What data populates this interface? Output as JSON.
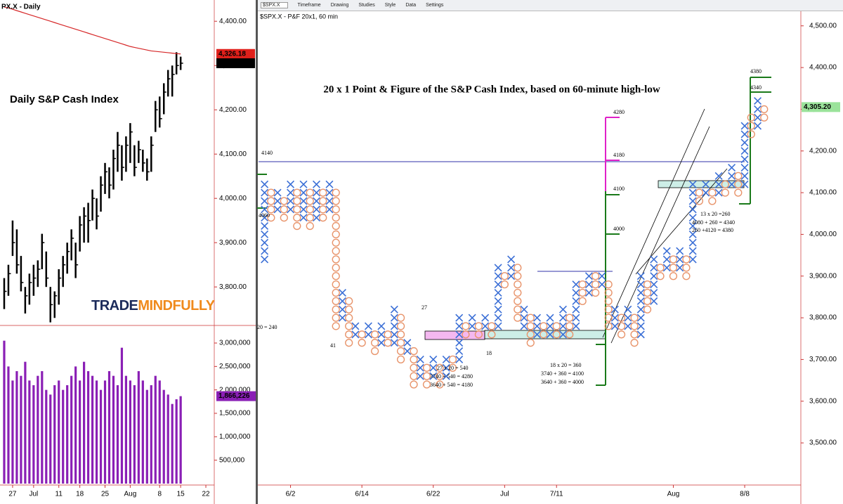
{
  "toolbar": {
    "symbol": "$SPX.X",
    "items": [
      "Timeframe",
      "Drawing",
      "Studies",
      "Style",
      "Data",
      "Settings"
    ]
  },
  "chart_data": [
    {
      "type": "ohlc",
      "title": "PX.X - Daily",
      "annotation": "Daily S&P Cash Index",
      "logo": [
        "TRADE",
        "MINDFULLY"
      ],
      "ylim": [
        3713,
        4448
      ],
      "yticks": [
        {
          "value": 3800,
          "label": "3,800.00"
        },
        {
          "value": 3900,
          "label": "3,900.00"
        },
        {
          "value": 4000,
          "label": "4,000.00"
        },
        {
          "value": 4100,
          "label": "4,100.00"
        },
        {
          "value": 4200,
          "label": "4,200.00"
        },
        {
          "value": 4300,
          "label": "4,300.00"
        },
        {
          "value": 4400,
          "label": "4,400.00"
        }
      ],
      "xlim": [
        -1,
        50
      ],
      "xticks": [
        {
          "value": 2,
          "label": "27"
        },
        {
          "value": 7,
          "label": "Jul"
        },
        {
          "value": 13,
          "label": "11"
        },
        {
          "value": 18,
          "label": "18"
        },
        {
          "value": 24,
          "label": "25"
        },
        {
          "value": 30,
          "label": "Aug"
        },
        {
          "value": 37,
          "label": "8"
        },
        {
          "value": 42,
          "label": "15"
        },
        {
          "value": 48,
          "label": "22"
        }
      ],
      "highs": [
        3820,
        3850,
        3950,
        3930,
        3870,
        3800,
        3830,
        3850,
        3860,
        3920,
        3880,
        3800,
        3790,
        3840,
        3870,
        3900,
        3930,
        3900,
        3960,
        3980,
        3990,
        4020,
        4000,
        4050,
        4080,
        4070,
        4110,
        4150,
        4120,
        4140,
        4170,
        4120,
        4130,
        4110,
        4090,
        4140,
        4220,
        4230,
        4260,
        4290,
        4300,
        4330,
        4320
      ],
      "lows": [
        3750,
        3780,
        3870,
        3830,
        3790,
        3740,
        3760,
        3780,
        3800,
        3840,
        3800,
        3720,
        3730,
        3760,
        3800,
        3830,
        3860,
        3820,
        3880,
        3900,
        3900,
        3950,
        3930,
        3970,
        4010,
        4000,
        4020,
        4060,
        4040,
        4060,
        4080,
        4050,
        4080,
        4060,
        4040,
        4060,
        4150,
        4160,
        4190,
        4230,
        4230,
        4280,
        4290
      ],
      "closes": [
        3790,
        3830,
        3900,
        3850,
        3810,
        3780,
        3810,
        3820,
        3840,
        3900,
        3820,
        3760,
        3780,
        3820,
        3850,
        3880,
        3910,
        3850,
        3940,
        3960,
        3950,
        4000,
        3960,
        4030,
        4060,
        4030,
        4090,
        4120,
        4070,
        4120,
        4150,
        4070,
        4110,
        4080,
        4060,
        4120,
        4200,
        4180,
        4240,
        4270,
        4280,
        4300,
        4305.2
      ],
      "ma_values": [
        4432,
        4430,
        4427,
        4424,
        4421,
        4418,
        4415,
        4412,
        4409,
        4406,
        4403,
        4400,
        4397,
        4394,
        4391,
        4388,
        4385,
        4382,
        4379,
        4376,
        4373,
        4370,
        4367,
        4364,
        4361,
        4358,
        4355,
        4352,
        4349,
        4346,
        4343,
        4341,
        4339,
        4337,
        4335,
        4333,
        4332,
        4331,
        4330,
        4329,
        4328,
        4327,
        4326.18
      ],
      "bar_color": "#000",
      "ma_color": "#d62728",
      "price_labels": [
        {
          "value": 4326.18,
          "label": "4,326.18",
          "color": "#e0201b"
        },
        {
          "value": 4305.2,
          "label": "4,305.20",
          "color": "#000000"
        }
      ]
    },
    {
      "type": "bar",
      "xlim": [
        -1,
        50
      ],
      "ylim": [
        0,
        3270000
      ],
      "color": "#8a1fb5",
      "yticks": [
        {
          "value": 500000,
          "label": "500,000"
        },
        {
          "value": 1000000,
          "label": "1,000,000"
        },
        {
          "value": 1500000,
          "label": "1,500,000"
        },
        {
          "value": 2000000,
          "label": "2,000,000"
        },
        {
          "value": 2500000,
          "label": "2,500,000"
        },
        {
          "value": 3000000,
          "label": "3,000,000"
        }
      ],
      "values": [
        3050000,
        2500000,
        2200000,
        2400000,
        2300000,
        2600000,
        2200000,
        2100000,
        2300000,
        2400000,
        2000000,
        1900000,
        2100000,
        2200000,
        2000000,
        2100000,
        2300000,
        2500000,
        2200000,
        2600000,
        2400000,
        2300000,
        2200000,
        2000000,
        2200000,
        2400000,
        2300000,
        2100000,
        2900000,
        2300000,
        2200000,
        2100000,
        2400000,
        2200000,
        2000000,
        2100000,
        2300000,
        2200000,
        2000000,
        1900000,
        1700000,
        1800000,
        1866226
      ],
      "last_label": {
        "value": 1866226,
        "label": "1,866,226"
      }
    },
    {
      "type": "point-and-figure",
      "title": "$SPX.X - P&F 20x1, 60 min",
      "box_size": 20,
      "x_color": "#3b6fd6",
      "o_color": "#e8946b",
      "ylim": [
        3399,
        4535
      ],
      "xlim": [
        -0.5,
        78
      ],
      "yticks": [
        {
          "value": 3500,
          "label": "3,500.00"
        },
        {
          "value": 3600,
          "label": "3,600.00"
        },
        {
          "value": 3700,
          "label": "3,700.00"
        },
        {
          "value": 3800,
          "label": "3,800.00"
        },
        {
          "value": 3900,
          "label": "3,900.00"
        },
        {
          "value": 4000,
          "label": "4,000.00"
        },
        {
          "value": 4100,
          "label": "4,100.00"
        },
        {
          "value": 4200,
          "label": "4,200.00"
        },
        {
          "value": 4300,
          "label": "4,300.00"
        },
        {
          "value": 4400,
          "label": "4,400.00"
        },
        {
          "value": 4500,
          "label": "4,500.00"
        }
      ],
      "xticks": [
        {
          "value": 4,
          "label": "6/2"
        },
        {
          "value": 15,
          "label": "6/14"
        },
        {
          "value": 26,
          "label": "6/22"
        },
        {
          "value": 37,
          "label": "Jul"
        },
        {
          "value": 45,
          "label": "7/11"
        },
        {
          "value": 63,
          "label": "Aug"
        },
        {
          "value": 74,
          "label": "8/8"
        }
      ],
      "columns": [
        [
          "X",
          3940,
          4120
        ],
        [
          "O",
          4040,
          4100
        ],
        [
          "X",
          4060,
          4100
        ],
        [
          "O",
          4040,
          4080
        ],
        [
          "X",
          4060,
          4120
        ],
        [
          "O",
          4020,
          4100
        ],
        [
          "X",
          4040,
          4120
        ],
        [
          "O",
          4020,
          4100
        ],
        [
          "X",
          4040,
          4120
        ],
        [
          "O",
          4040,
          4100
        ],
        [
          "X",
          4060,
          4120
        ],
        [
          "O",
          3780,
          4100
        ],
        [
          "X",
          3800,
          3860
        ],
        [
          "O",
          3740,
          3840
        ],
        [
          "X",
          3760,
          3780
        ],
        [
          "O",
          3740,
          3760
        ],
        [
          "X",
          3760,
          3780
        ],
        [
          "O",
          3720,
          3760
        ],
        [
          "X",
          3740,
          3780
        ],
        [
          "O",
          3740,
          3760
        ],
        [
          "X",
          3740,
          3820
        ],
        [
          "O",
          3700,
          3800
        ],
        [
          "X",
          3720,
          3740
        ],
        [
          "O",
          3640,
          3720
        ],
        [
          "X",
          3660,
          3700
        ],
        [
          "O",
          3640,
          3680
        ],
        [
          "X",
          3660,
          3700
        ],
        [
          "O",
          3640,
          3680
        ],
        [
          "X",
          3660,
          3700
        ],
        [
          "O",
          3680,
          3700
        ],
        [
          "X",
          3700,
          3800
        ],
        [
          "O",
          3760,
          3780
        ],
        [
          "X",
          3780,
          3800
        ],
        [
          "O",
          3760,
          3780
        ],
        [
          "X",
          3780,
          3800
        ],
        [
          "O",
          3760,
          3780
        ],
        [
          "X",
          3780,
          3920
        ],
        [
          "O",
          3880,
          3900
        ],
        [
          "X",
          3900,
          3940
        ],
        [
          "O",
          3800,
          3920
        ],
        [
          "X",
          3780,
          3820
        ],
        [
          "O",
          3740,
          3800
        ],
        [
          "X",
          3760,
          3800
        ],
        [
          "O",
          3760,
          3780
        ],
        [
          "X",
          3760,
          3800
        ],
        [
          "O",
          3760,
          3780
        ],
        [
          "X",
          3760,
          3820
        ],
        [
          "O",
          3760,
          3800
        ],
        [
          "X",
          3780,
          3880
        ],
        [
          "O",
          3840,
          3880
        ],
        [
          "X",
          3860,
          3900
        ],
        [
          "O",
          3860,
          3900
        ],
        [
          "X",
          3880,
          3900
        ],
        [
          "O",
          3780,
          3880
        ],
        [
          "X",
          3780,
          3820
        ],
        [
          "O",
          3760,
          3800
        ],
        [
          "X",
          3780,
          3820
        ],
        [
          "O",
          3740,
          3800
        ],
        [
          "X",
          3760,
          3900
        ],
        [
          "O",
          3820,
          3880
        ],
        [
          "X",
          3840,
          3940
        ],
        [
          "O",
          3900,
          3920
        ],
        [
          "X",
          3920,
          3960
        ],
        [
          "O",
          3900,
          3940
        ],
        [
          "X",
          3920,
          3960
        ],
        [
          "O",
          3900,
          3940
        ],
        [
          "X",
          3940,
          4120
        ],
        [
          "O",
          4080,
          4100
        ],
        [
          "X",
          4100,
          4120
        ],
        [
          "O",
          4080,
          4100
        ],
        [
          "X",
          4100,
          4140
        ],
        [
          "O",
          4100,
          4120
        ],
        [
          "X",
          4120,
          4160
        ],
        [
          "O",
          4100,
          4140
        ],
        [
          "X",
          4120,
          4260
        ],
        [
          "O",
          4240,
          4280
        ],
        [
          "X",
          4260,
          4320
        ],
        [
          "O",
          4280,
          4300
        ]
      ],
      "last_label": {
        "value": 4305.2,
        "label": "4,305.20"
      },
      "annotations": [
        "20 x 1 Point & Figure of the S&P Cash Index, based on 60-minute high-low",
        "4140",
        "4060",
        "4280",
        "4180",
        "4100",
        "4000",
        "4380",
        "4340",
        "27",
        "41",
        "18",
        "20 = 240",
        "27 x 20 = 540",
        "3740 + 540 = 4280",
        "3640 + 540 = 4180",
        "18 x 20 = 360",
        "3740 + 360 = 4100",
        "3640 + 360 = 4000",
        "13 x 20 =260",
        "4080 + 260 = 4340",
        "260 +4120 = 4380"
      ]
    }
  ]
}
